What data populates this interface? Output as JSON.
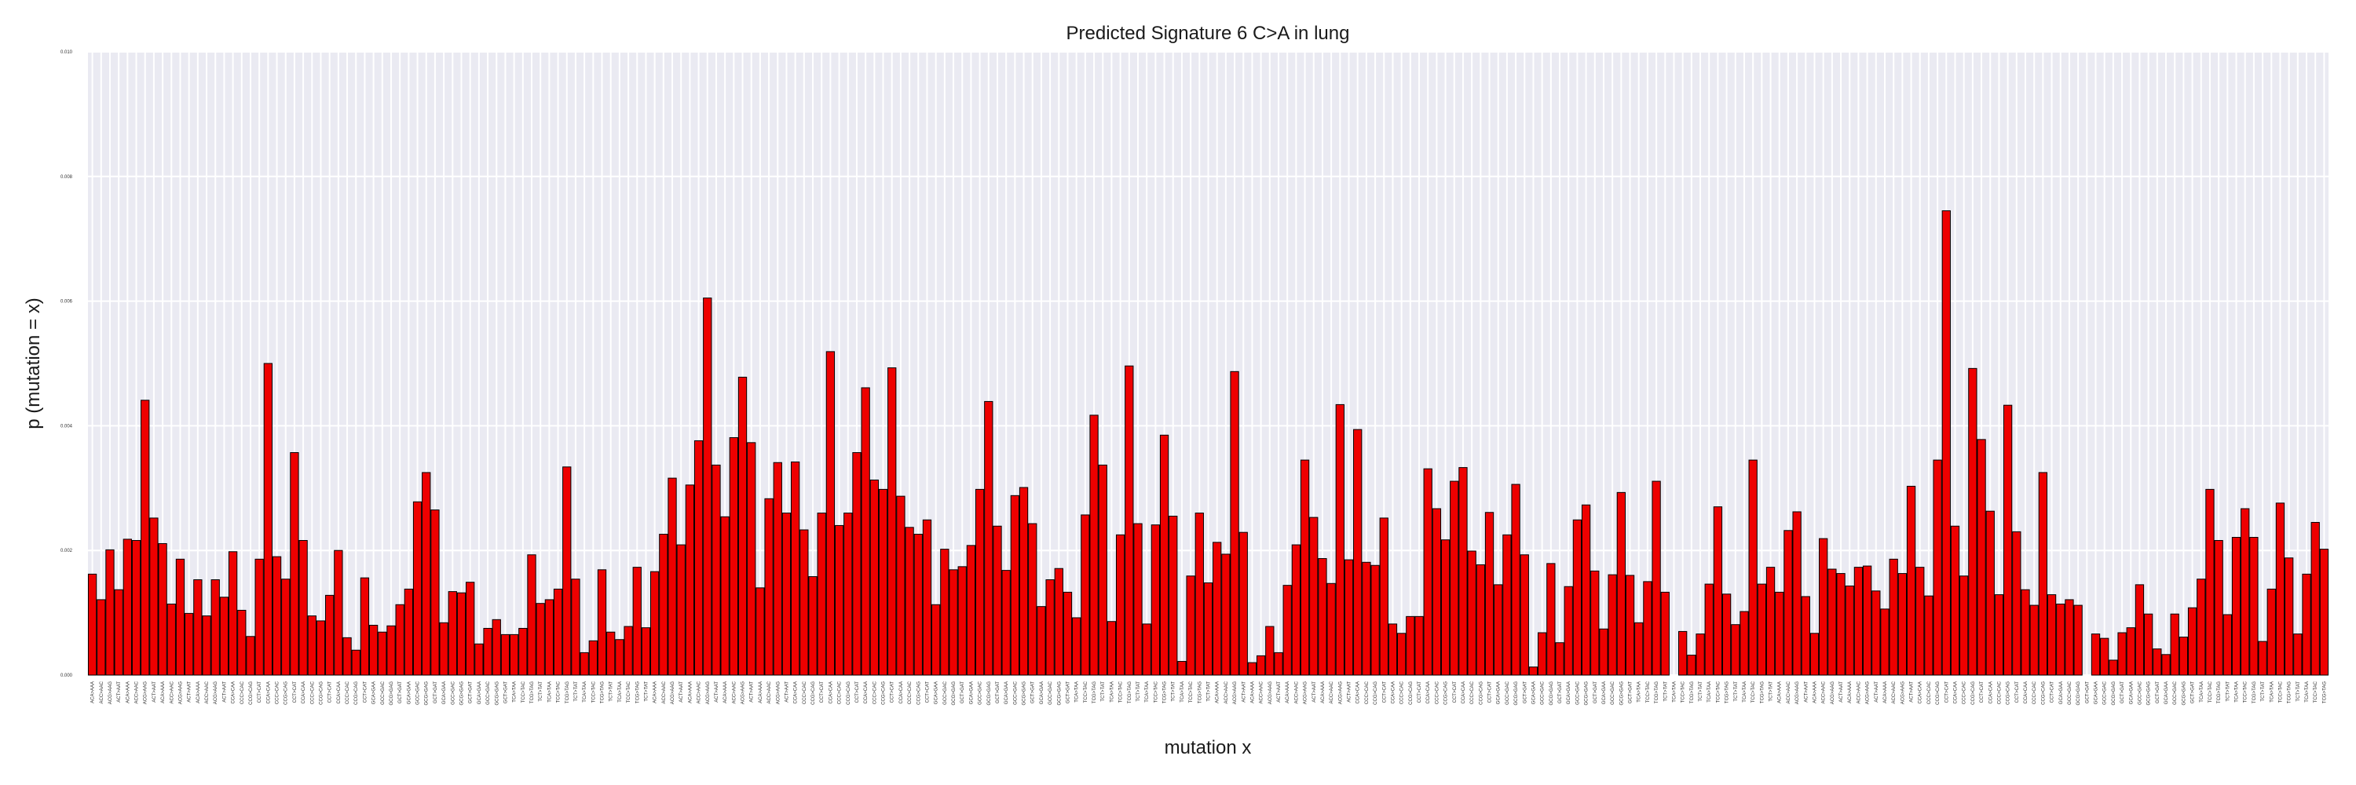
{
  "chart_data": {
    "type": "bar",
    "title": "Predicted Signature 6 C>A in lung",
    "xlabel": "mutation x",
    "ylabel": "p (mutation = x)",
    "ylim": [
      0,
      0.01
    ],
    "yticks": [
      "0.000",
      "0.002",
      "0.004",
      "0.006",
      "0.008",
      "0.010"
    ],
    "grid": true,
    "bar_color": "#ee0000",
    "edge_color": "#000000",
    "plot_background": "#eaeaf2",
    "bases": [
      "A",
      "C",
      "G",
      "T"
    ],
    "values": [
      0.00162,
      0.00121,
      0.00201,
      0.00137,
      0.00218,
      0.00216,
      0.00441,
      0.00252,
      0.00211,
      0.00114,
      0.00186,
      0.00099,
      0.00153,
      0.00095,
      0.00153,
      0.00125,
      0.00198,
      0.00104,
      0.00062,
      0.00186,
      0.005,
      0.0019,
      0.00154,
      0.00357,
      0.00216,
      0.00095,
      0.00087,
      0.00128,
      0.002,
      0.0006,
      0.0004,
      0.00156,
      0.0008,
      0.00069,
      0.00079,
      0.00113,
      0.00138,
      0.00278,
      0.00325,
      0.00265,
      0.00084,
      0.00134,
      0.00132,
      0.00149,
      0.0005,
      0.00075,
      0.00089,
      0.00065,
      0.00065,
      0.00075,
      0.00193,
      0.00115,
      0.00121,
      0.00138,
      0.00334,
      0.00154,
      0.00036,
      0.00055,
      0.00169,
      0.00069,
      0.00057,
      0.00078,
      0.00173,
      0.00076,
      0.00166,
      0.00226,
      0.00316,
      0.00209,
      0.00305,
      0.00376,
      0.00605,
      0.00337,
      0.00254,
      0.00381,
      0.00478,
      0.00373,
      0.0014,
      0.00283,
      0.00341,
      0.0026,
      0.00342,
      0.00233,
      0.00158,
      0.0026,
      0.00519,
      0.0024,
      0.0026,
      0.00357,
      0.00461,
      0.00313,
      0.00298,
      0.00493,
      0.00287,
      0.00237,
      0.00226,
      0.00249,
      0.00113,
      0.00202,
      0.00169,
      0.00174,
      0.00208,
      0.00298,
      0.00439,
      0.00239,
      0.00168,
      0.00288,
      0.00301,
      0.00243,
      0.0011,
      0.00153,
      0.00171,
      0.00133,
      0.00092,
      0.00257,
      0.00417,
      0.00337,
      0.00086,
      0.00225,
      0.00496,
      0.00243,
      0.00082,
      0.00241,
      0.00385,
      0.00255,
      0.00022,
      0.00159,
      0.0026,
      0.00148,
      0.00213,
      0.00194,
      0.00487,
      0.00229,
      0.0002,
      0.00031,
      0.00078,
      0.00036,
      0.00144,
      0.00209,
      0.00345,
      0.00253,
      0.00187,
      0.00147,
      0.00434,
      0.00185,
      0.00394,
      0.00181,
      0.00176,
      0.00252,
      0.00082,
      0.00067,
      0.00094,
      0.00094,
      0.00331,
      0.00267,
      0.00217,
      0.00311,
      0.00333,
      0.00199,
      0.00177,
      0.00261,
      0.00145,
      0.00225,
      0.00306,
      0.00193,
      0.00013,
      0.00068,
      0.00179,
      0.00052,
      0.00142,
      0.00249,
      0.00273,
      0.00167,
      0.00074,
      0.00161,
      0.00293,
      0.0016,
      0.00084,
      0.0015,
      0.00311,
      0.00133,
      0.0,
      0.0007,
      0.00032,
      0.00066,
      0.00146,
      0.0027,
      0.0013,
      0.00081,
      0.00102,
      0.00345,
      0.00146,
      0.00173,
      0.00133,
      0.00232,
      0.00262,
      0.00126,
      0.00067,
      0.00219,
      0.0017,
      0.00163,
      0.00143,
      0.00173,
      0.00175,
      0.00135,
      0.00106,
      0.00186,
      0.00163,
      0.00303,
      0.00173,
      0.00127,
      0.00345,
      0.00745,
      0.00239,
      0.00159,
      0.00492,
      0.00378,
      0.00263,
      0.00129,
      0.00433,
      0.0023,
      0.00137,
      0.00112,
      0.00325,
      0.00129,
      0.00114,
      0.00121,
      0.00112,
      0.0,
      0.00066,
      0.00059,
      0.00024,
      0.00068,
      0.00076,
      0.00145,
      0.00098,
      0.00042,
      0.00033,
      0.00098,
      0.00061,
      0.00108,
      0.00154,
      0.00298,
      0.00216,
      0.00097,
      0.00221,
      0.00267,
      0.00221,
      0.00054,
      0.00138,
      0.00276,
      0.00188,
      0.00066,
      0.00162,
      0.00245,
      0.00202
    ]
  }
}
